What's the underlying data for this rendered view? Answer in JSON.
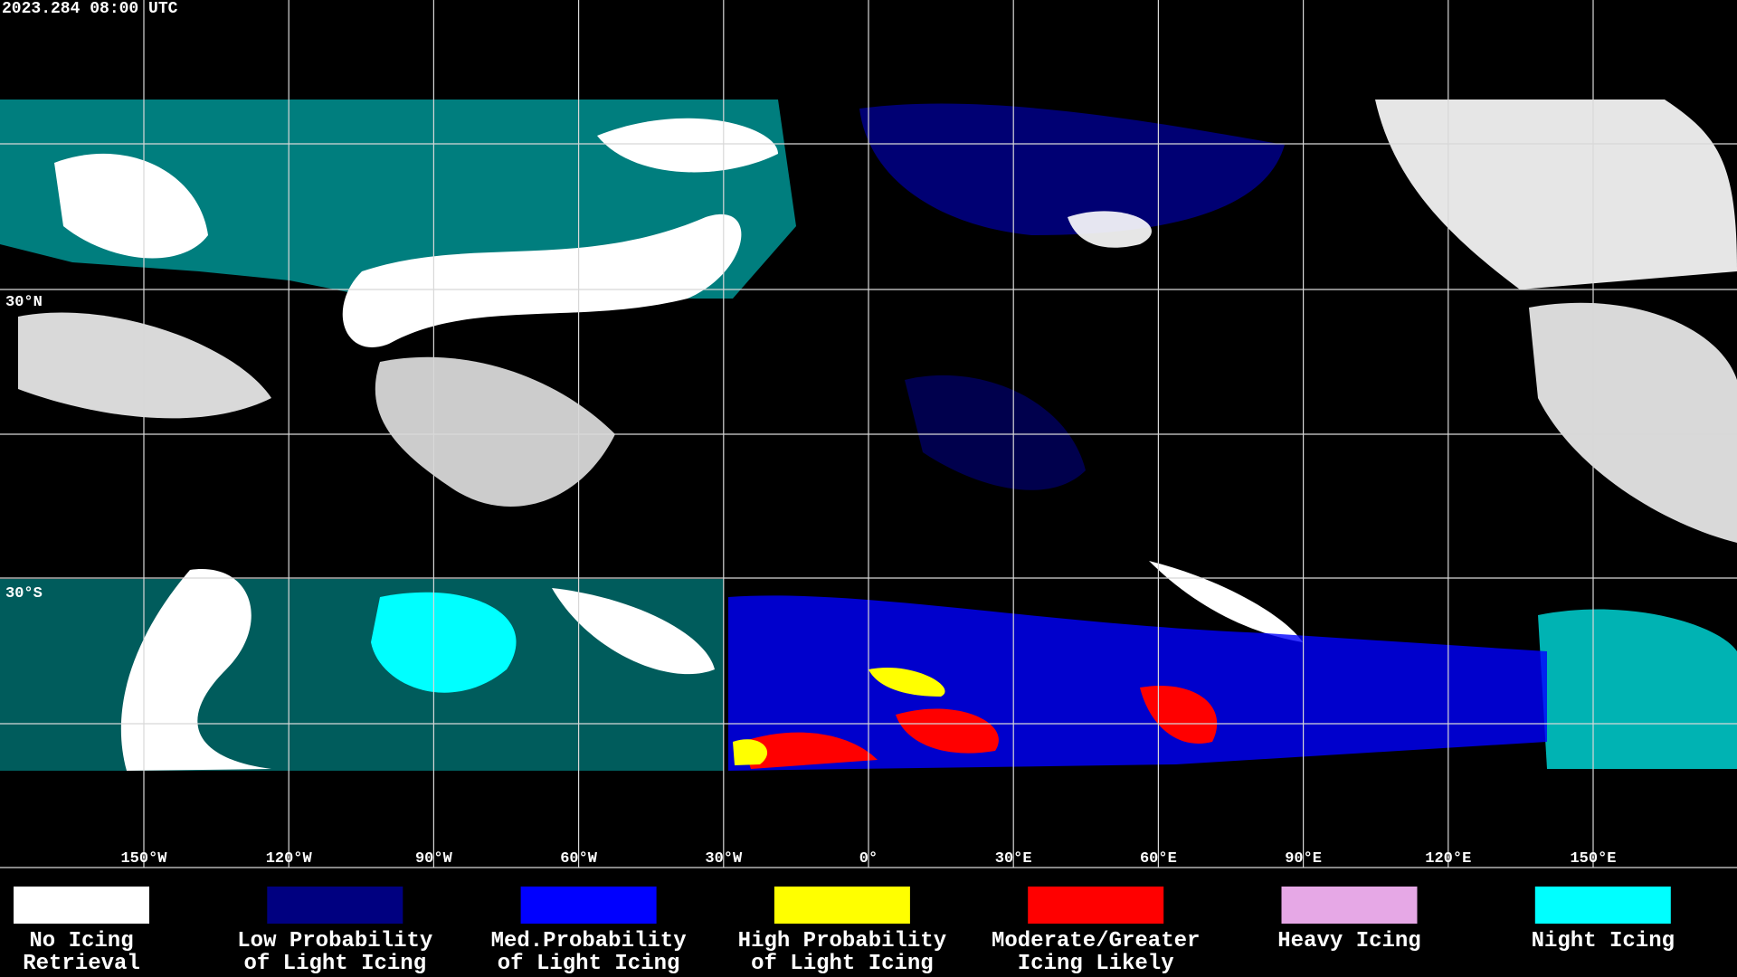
{
  "header": {
    "timestamp": "2023.284 08:00 UTC"
  },
  "map": {
    "lat_labels": [
      "30°N",
      "30°S"
    ],
    "lon_labels": [
      "150°W",
      "120°W",
      "90°W",
      "60°W",
      "30°W",
      "0°",
      "30°E",
      "60°E",
      "90°E",
      "120°E",
      "150°E"
    ]
  },
  "legend": {
    "items": [
      {
        "lines": [
          "No Icing",
          "Retrieval"
        ],
        "color": "#ffffff"
      },
      {
        "lines": [
          "Low Probability",
          "of Light Icing"
        ],
        "color": "#000080"
      },
      {
        "lines": [
          "Med.Probability",
          "of Light Icing"
        ],
        "color": "#0000ff"
      },
      {
        "lines": [
          "High Probability",
          "of Light Icing"
        ],
        "color": "#ffff00"
      },
      {
        "lines": [
          "Moderate/Greater",
          "Icing Likely"
        ],
        "color": "#ff0000"
      },
      {
        "lines": [
          "Heavy Icing"
        ],
        "color": "#e6a8e6"
      },
      {
        "lines": [
          "Night Icing"
        ],
        "color": "#00ffff"
      }
    ]
  }
}
